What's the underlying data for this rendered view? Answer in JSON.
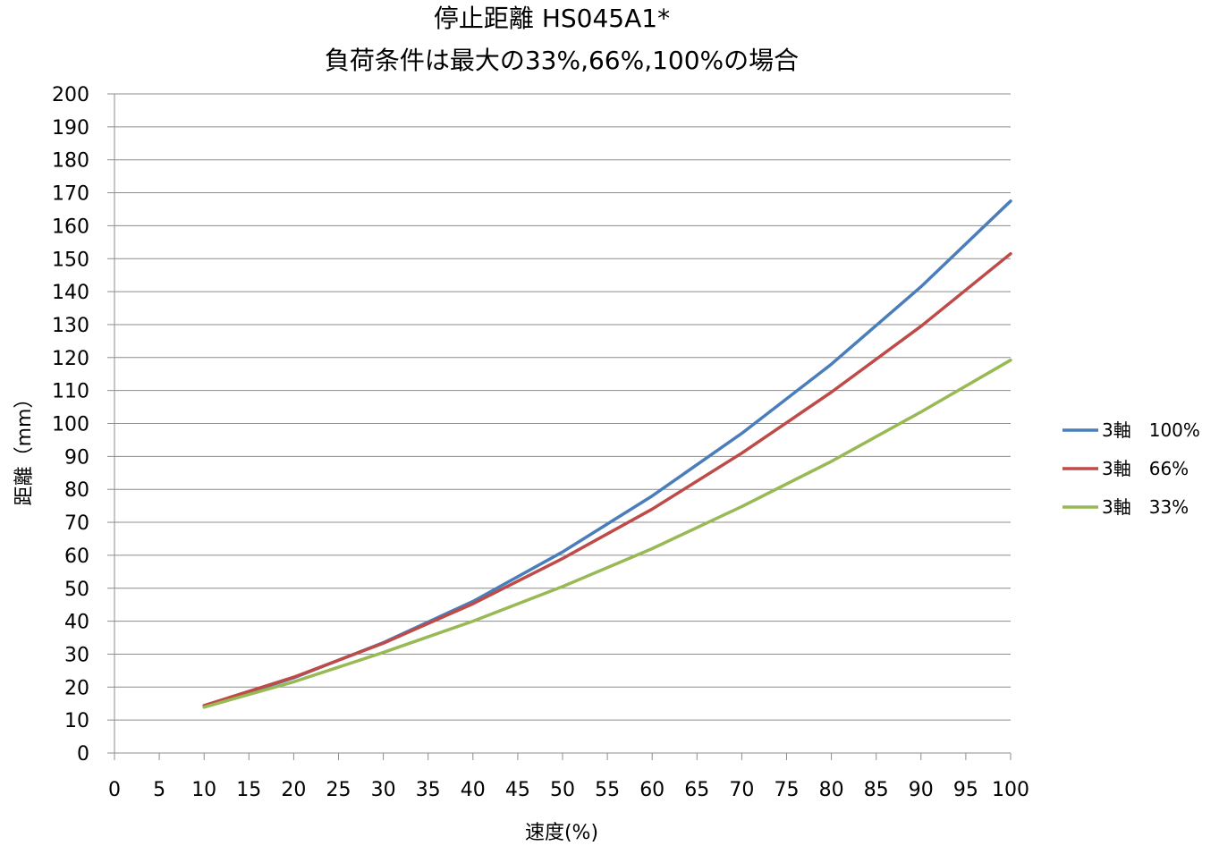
{
  "chart_data": {
    "type": "line",
    "title_lines": [
      "停止距離 HS045A1*",
      "負荷条件は最大の33%,66%,100%の場合"
    ],
    "xlabel": "速度(%)",
    "ylabel": "距離（mm）",
    "xlim": [
      0,
      100
    ],
    "ylim": [
      0,
      200
    ],
    "x_ticks": [
      "0",
      "5",
      "10",
      "15",
      "20",
      "25",
      "30",
      "35",
      "40",
      "45",
      "50",
      "55",
      "60",
      "65",
      "70",
      "75",
      "80",
      "85",
      "90",
      "95",
      "100"
    ],
    "y_ticks": [
      "0",
      "10",
      "20",
      "30",
      "40",
      "50",
      "60",
      "70",
      "80",
      "90",
      "100",
      "110",
      "120",
      "130",
      "140",
      "150",
      "160",
      "170",
      "180",
      "190",
      "200"
    ],
    "grid": "horizontal",
    "legend_position": "right",
    "x": [
      10,
      20,
      30,
      40,
      50,
      60,
      70,
      80,
      90,
      100
    ],
    "series": [
      {
        "name": "3軸　100%",
        "color": "#4a7ebb",
        "values": [
          14.2,
          22.8,
          33.5,
          46,
          61,
          78,
          97,
          118,
          141.5,
          167.5
        ]
      },
      {
        "name": "3軸　66%",
        "color": "#be4b48",
        "values": [
          14.4,
          23,
          33.3,
          45.3,
          59,
          74,
          91,
          109.5,
          129.5,
          151.5
        ]
      },
      {
        "name": "3軸　33%",
        "color": "#98b954",
        "values": [
          13.9,
          21.6,
          30.5,
          40,
          50.5,
          62,
          74.8,
          88.5,
          103.5,
          119.2
        ]
      }
    ]
  }
}
